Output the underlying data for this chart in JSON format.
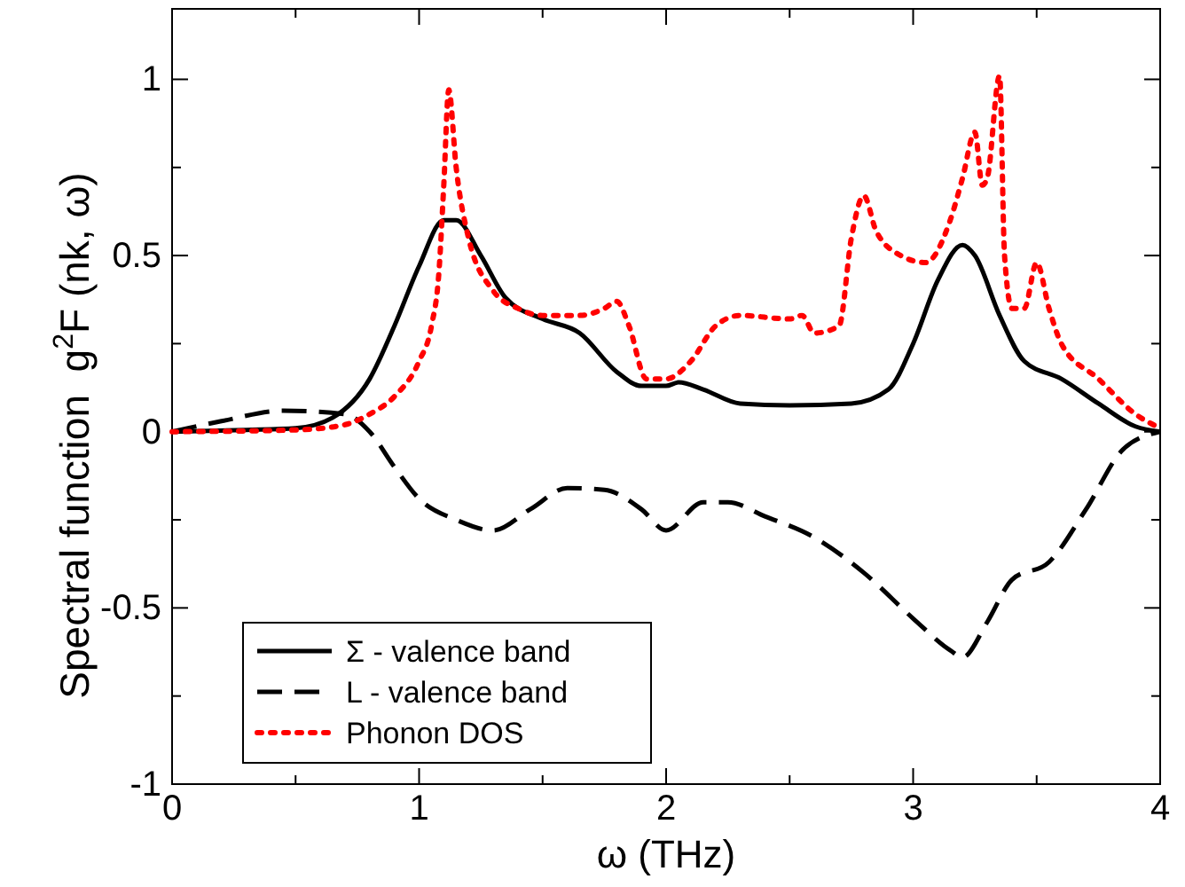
{
  "chart_data": {
    "type": "line",
    "xlabel": "ω (THz)",
    "ylabel": "Spectral function  g$^{2}$F (nk, ω)",
    "xlim": [
      0,
      4
    ],
    "ylim": [
      -1,
      1.2
    ],
    "xticks": [
      0,
      {
        "value": 0.5,
        "label": null
      },
      1,
      {
        "value": 1.5,
        "label": null
      },
      2,
      {
        "value": 2.5,
        "label": null
      },
      3,
      {
        "value": 3.5,
        "label": null
      },
      4
    ],
    "yticks": [
      -1,
      {
        "value": -0.75,
        "label": null
      },
      -0.5,
      {
        "value": -0.25,
        "label": null
      },
      0,
      {
        "value": 0.25,
        "label": null
      },
      0.5,
      {
        "value": 0.75,
        "label": null
      },
      1
    ],
    "legend": "bottom left",
    "grid": false,
    "marker": "none",
    "series": [
      {
        "name": "Σ - valence band",
        "color": "#000000",
        "line_style": "solid",
        "x": [
          0,
          0.3,
          0.5,
          0.65,
          0.8,
          0.9,
          1.0,
          1.1,
          1.15,
          1.25,
          1.35,
          1.5,
          1.65,
          1.8,
          1.9,
          2.0,
          2.05,
          2.15,
          2.3,
          2.5,
          2.75,
          2.9,
          3.0,
          3.1,
          3.2,
          3.25,
          3.35,
          3.45,
          3.6,
          3.75,
          3.9,
          4
        ],
        "values": [
          0,
          0.005,
          0.01,
          0.04,
          0.15,
          0.3,
          0.47,
          0.6,
          0.6,
          0.5,
          0.38,
          0.32,
          0.28,
          0.17,
          0.13,
          0.13,
          0.14,
          0.12,
          0.08,
          0.075,
          0.08,
          0.12,
          0.25,
          0.43,
          0.53,
          0.5,
          0.33,
          0.2,
          0.15,
          0.08,
          0.015,
          0
        ]
      },
      {
        "name": "L - valence band",
        "color": "#000000",
        "line_style": "dashed",
        "x": [
          0,
          0.2,
          0.45,
          0.7,
          0.8,
          0.9,
          1.0,
          1.15,
          1.3,
          1.45,
          1.6,
          1.75,
          1.9,
          2.0,
          2.15,
          2.25,
          2.4,
          2.6,
          2.8,
          3.0,
          3.15,
          3.2,
          3.3,
          3.4,
          3.55,
          3.7,
          3.85,
          4
        ],
        "values": [
          0,
          0.03,
          0.06,
          0.05,
          0.0,
          -0.1,
          -0.19,
          -0.25,
          -0.28,
          -0.22,
          -0.16,
          -0.165,
          -0.22,
          -0.28,
          -0.2,
          -0.2,
          -0.24,
          -0.3,
          -0.4,
          -0.53,
          -0.62,
          -0.64,
          -0.54,
          -0.42,
          -0.37,
          -0.22,
          -0.05,
          0
        ]
      },
      {
        "name": "Phonon DOS",
        "color": "#ff0000",
        "line_style": "dotted",
        "x": [
          0,
          0.5,
          0.7,
          0.8,
          0.9,
          1.0,
          1.05,
          1.08,
          1.1,
          1.12,
          1.15,
          1.2,
          1.3,
          1.4,
          1.5,
          1.65,
          1.75,
          1.8,
          1.85,
          1.92,
          2.0,
          2.1,
          2.2,
          2.3,
          2.5,
          2.55,
          2.6,
          2.7,
          2.75,
          2.8,
          2.85,
          2.95,
          3.05,
          3.15,
          3.2,
          3.25,
          3.28,
          3.3,
          3.35,
          3.37,
          3.4,
          3.45,
          3.5,
          3.55,
          3.6,
          3.75,
          3.9,
          4
        ],
        "values": [
          0,
          0.005,
          0.02,
          0.05,
          0.1,
          0.2,
          0.3,
          0.45,
          0.7,
          0.97,
          0.75,
          0.55,
          0.4,
          0.35,
          0.33,
          0.33,
          0.35,
          0.37,
          0.3,
          0.15,
          0.15,
          0.2,
          0.3,
          0.33,
          0.32,
          0.33,
          0.28,
          0.3,
          0.55,
          0.67,
          0.57,
          0.5,
          0.48,
          0.6,
          0.72,
          0.85,
          0.7,
          0.72,
          1.01,
          0.5,
          0.35,
          0.35,
          0.48,
          0.35,
          0.25,
          0.15,
          0.05,
          0.01
        ]
      }
    ]
  }
}
